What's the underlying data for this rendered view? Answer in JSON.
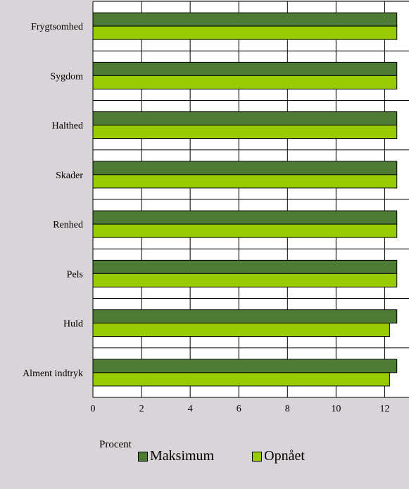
{
  "chart_data": {
    "type": "bar",
    "orientation": "horizontal",
    "categories": [
      "Frygtsomhed",
      "Sygdom",
      "Halthed",
      "Skader",
      "Renhed",
      "Pels",
      "Huld",
      "Alment indtryk"
    ],
    "series": [
      {
        "name": "Maksimum",
        "color": "#4e7b34",
        "values": [
          12.5,
          12.5,
          12.5,
          12.5,
          12.5,
          12.5,
          12.5,
          12.5
        ]
      },
      {
        "name": "Opnået",
        "color": "#99cc00",
        "values": [
          12.5,
          12.5,
          12.5,
          12.5,
          12.5,
          12.5,
          12.2,
          12.2
        ]
      }
    ],
    "xlabel": "Procent",
    "xlim": [
      0,
      13
    ],
    "xticks": [
      0,
      2,
      4,
      6,
      8,
      10,
      12
    ],
    "grid": true,
    "legend": "bottom"
  }
}
